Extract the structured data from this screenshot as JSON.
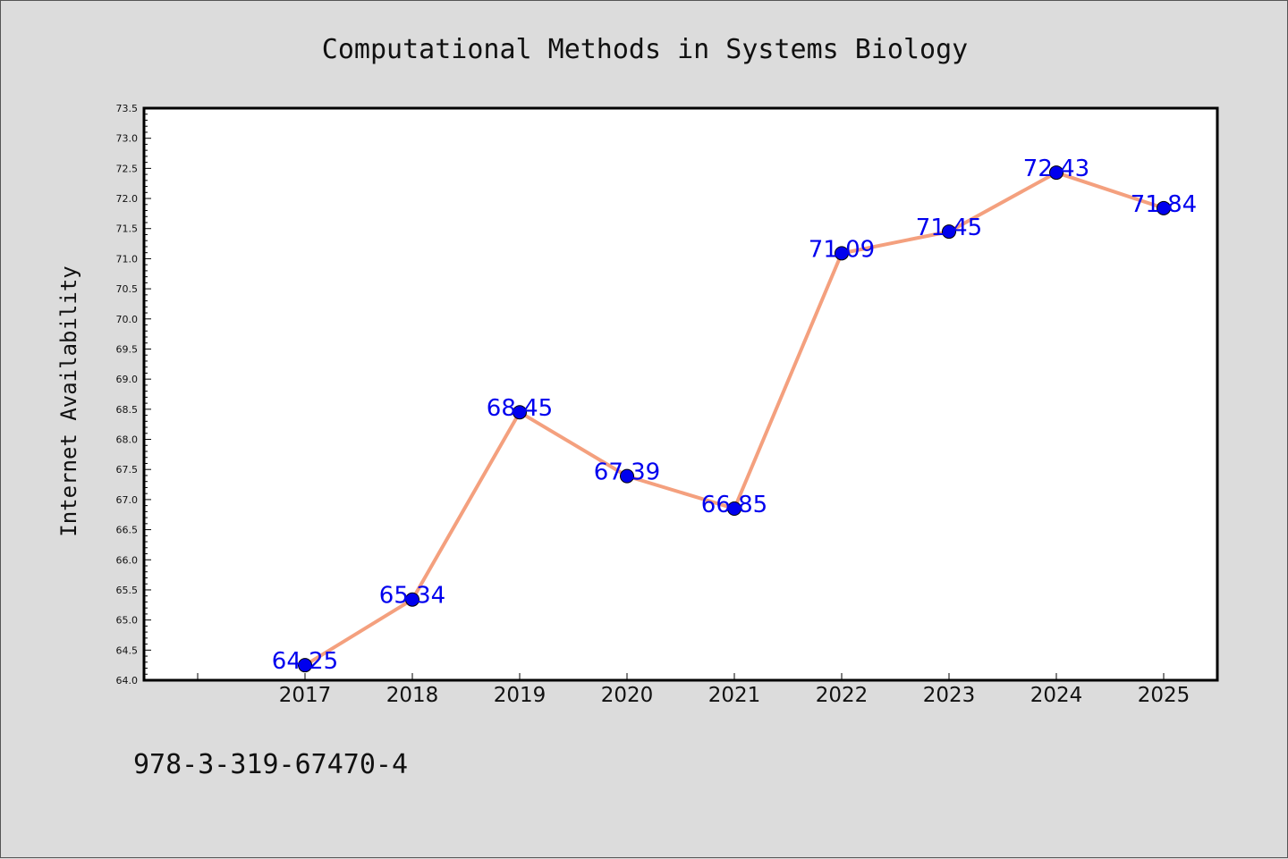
{
  "chart_data": {
    "type": "line",
    "title": "Computational Methods in Systems Biology",
    "ylabel": "Internet Availability",
    "xlabel": "",
    "categories": [
      "2017",
      "2018",
      "2019",
      "2020",
      "2021",
      "2022",
      "2023",
      "2024",
      "2025"
    ],
    "values": [
      64.25,
      65.34,
      68.45,
      67.39,
      66.85,
      71.09,
      71.45,
      72.43,
      71.84
    ],
    "data_labels": [
      "64.25",
      "65.34",
      "68.45",
      "67.39",
      "66.85",
      "71.09",
      "71.45",
      "72.43",
      "71.84"
    ],
    "ylim": [
      64.0,
      73.5
    ],
    "y_ticks": [
      "64.0",
      "64.5",
      "65.0",
      "65.5",
      "66.0",
      "66.5",
      "67.0",
      "67.5",
      "68.0",
      "68.5",
      "69.0",
      "69.5",
      "70.0",
      "70.5",
      "71.0",
      "71.5",
      "72.0",
      "72.5",
      "73.0",
      "73.5"
    ],
    "grid": false,
    "legend": "none",
    "line_color": "#f4a07e",
    "marker_color": "#0000ee",
    "label_color": "#0000ee"
  },
  "footer": {
    "isbn": "978-3-319-67470-4"
  }
}
